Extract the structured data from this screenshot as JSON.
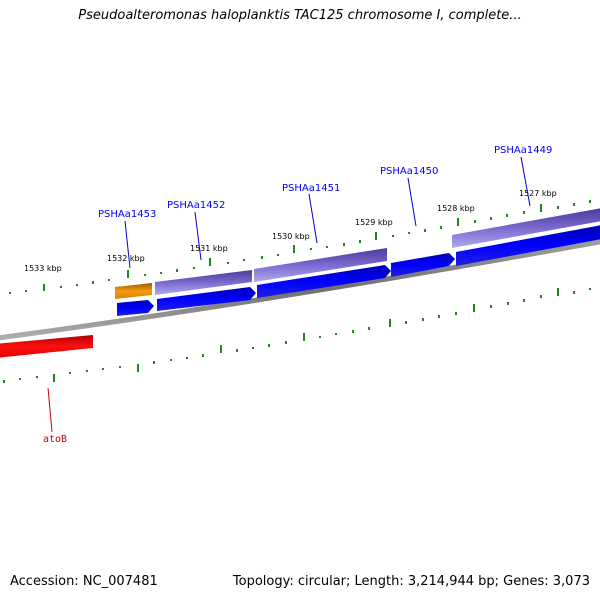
{
  "header": {
    "title": "Pseudoalteromonas haloplanktis TAC125 chromosome I, complete..."
  },
  "footer": {
    "accession": "Accession: NC_007481",
    "summary": "Topology: circular; Length: 3,214,944 bp; Genes: 3,073"
  },
  "map": {
    "kbp_labels": [
      "1533 kbp",
      "1532 kbp",
      "1531 kbp",
      "1530 kbp",
      "1529 kbp",
      "1528 kbp",
      "1527 kbp"
    ],
    "gene_labels": [
      "PSHAa1453",
      "PSHAa1452",
      "PSHAa1451",
      "PSHAa1450",
      "PSHAa1449"
    ],
    "rna_labels": [
      "atoB"
    ],
    "colors": {
      "gene_label": "#0000ff",
      "rna_label": "#cc0000",
      "cds_blue": "#0000e6",
      "gene_purple": "#7060c8",
      "gene_orange": "#f08c00",
      "rna_red": "#ee0000",
      "tick_green": "#008000",
      "backbone_gray": "#808080"
    }
  }
}
